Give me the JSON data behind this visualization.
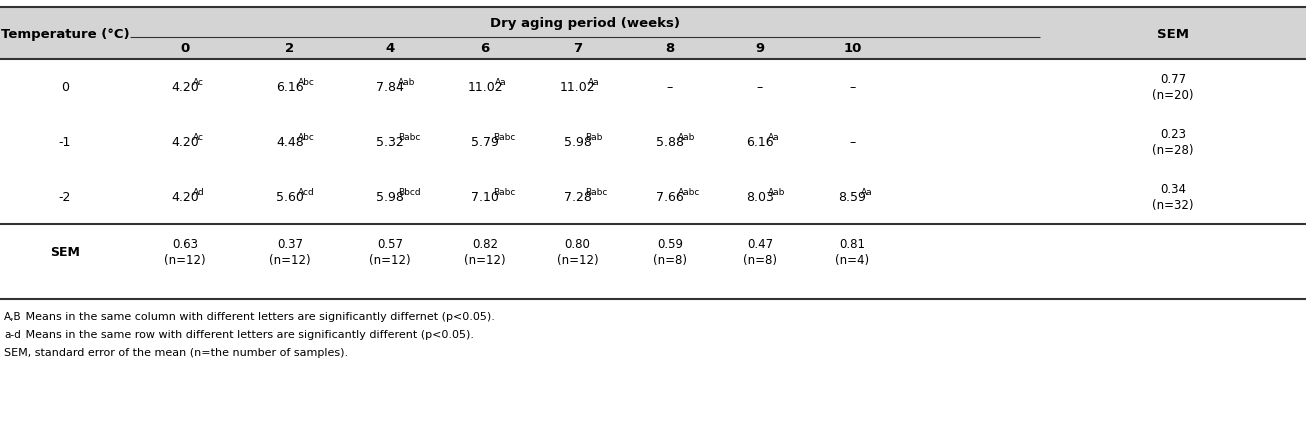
{
  "title": "Dry aging period (weeks)",
  "col_header_left": "Temperature (°C)",
  "col_header_right": "SEM",
  "weeks": [
    "0",
    "2",
    "4",
    "6",
    "7",
    "8",
    "9",
    "10"
  ],
  "rows": [
    {
      "temp": "0",
      "values": [
        [
          "4.20",
          "Ac"
        ],
        [
          "6.16",
          "Abc"
        ],
        [
          "7.84",
          "Aab"
        ],
        [
          "11.02",
          "Aa"
        ],
        [
          "11.02",
          "Aa"
        ],
        [
          "-",
          ""
        ],
        [
          "-",
          ""
        ],
        [
          "-",
          ""
        ]
      ],
      "sem": "0.77\n(n=20)"
    },
    {
      "temp": "-1",
      "values": [
        [
          "4.20",
          "Ac"
        ],
        [
          "4.48",
          "Abc"
        ],
        [
          "5.32",
          "Babc"
        ],
        [
          "5.79",
          "Babc"
        ],
        [
          "5.98",
          "Bab"
        ],
        [
          "5.88",
          "Aab"
        ],
        [
          "6.16",
          "Aa"
        ],
        [
          "-",
          ""
        ]
      ],
      "sem": "0.23\n(n=28)"
    },
    {
      "temp": "-2",
      "values": [
        [
          "4.20",
          "Ad"
        ],
        [
          "5.60",
          "Acd"
        ],
        [
          "5.98",
          "Bbcd"
        ],
        [
          "7.10",
          "Babc"
        ],
        [
          "7.28",
          "Babc"
        ],
        [
          "7.66",
          "Aabc"
        ],
        [
          "8.03",
          "Aab"
        ],
        [
          "8.59",
          "Aa"
        ]
      ],
      "sem": "0.34\n(n=32)"
    },
    {
      "temp": "SEM",
      "values": [
        [
          "0.63\n(n=12)",
          ""
        ],
        [
          "0.37\n(n=12)",
          ""
        ],
        [
          "0.57\n(n=12)",
          ""
        ],
        [
          "0.82\n(n=12)",
          ""
        ],
        [
          "0.80\n(n=12)",
          ""
        ],
        [
          "0.59\n(n=8)",
          ""
        ],
        [
          "0.47\n(n=8)",
          ""
        ],
        [
          "0.81\n(n=4)",
          ""
        ]
      ],
      "sem": ""
    }
  ],
  "footnotes": [
    [
      "A,B",
      " Means in the same column with different letters are significantly differnet (p<0.05)."
    ],
    [
      "a-d",
      " Means in the same row with different letters are significantly different (p<0.05)."
    ],
    [
      "SEM, standard error of the mean (n=the number of samples).",
      ""
    ]
  ],
  "header_bg": "#d4d4d4",
  "data_bg": "#ffffff",
  "cell_text_color": "#000000",
  "line_color": "#333333",
  "fig_width": 13.06,
  "fig_height": 4.31,
  "dpi": 100
}
